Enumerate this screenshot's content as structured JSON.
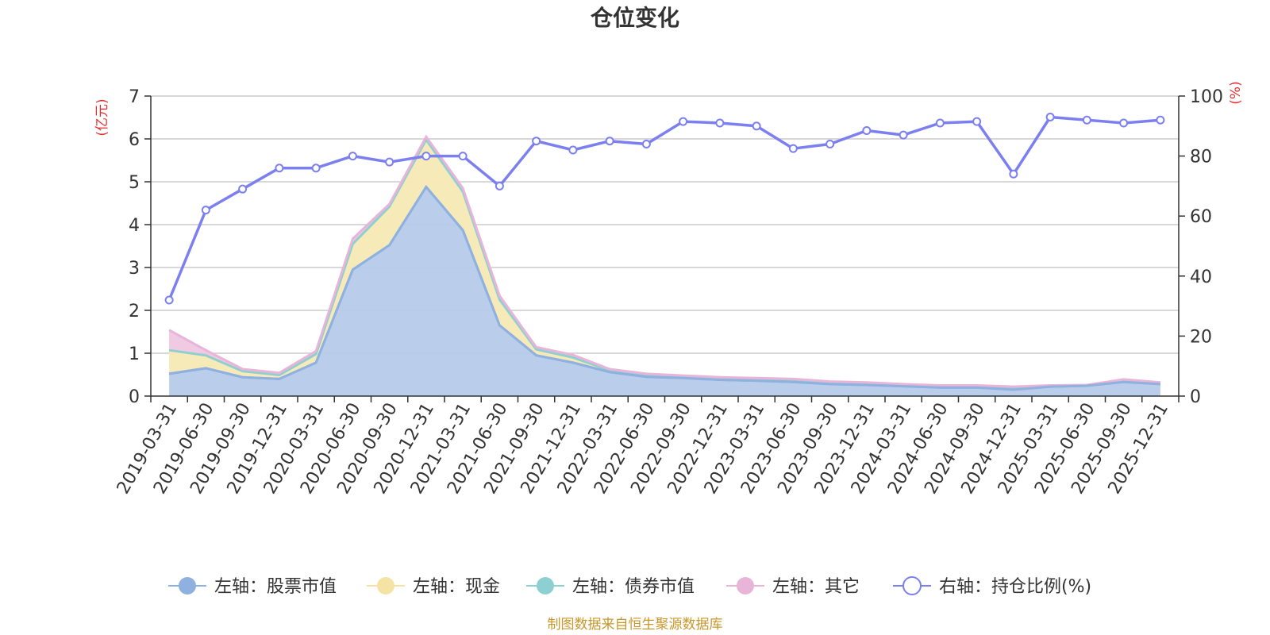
{
  "chart_data": {
    "type": "area",
    "title": "仓位变化",
    "source_note": "制图数据来自恒生聚源数据库",
    "left_axis": {
      "unit": "(亿元)",
      "ticks": [
        "0",
        "1",
        "2",
        "3",
        "4",
        "5",
        "6",
        "7"
      ],
      "ylim": [
        0,
        7
      ]
    },
    "right_axis": {
      "unit": "(%)",
      "ticks": [
        "0",
        "20",
        "40",
        "60",
        "80",
        "100"
      ],
      "ylim": [
        0,
        100
      ]
    },
    "categories": [
      "2019-03-31",
      "2019-06-30",
      "2019-09-30",
      "2019-12-31",
      "2020-03-31",
      "2020-06-30",
      "2020-09-30",
      "2020-12-31",
      "2021-03-31",
      "2021-06-30",
      "2021-09-30",
      "2021-12-31",
      "2022-03-31",
      "2022-06-30",
      "2022-09-30",
      "2022-12-31",
      "2023-03-31",
      "2023-06-30",
      "2023-09-30",
      "2023-12-31",
      "2024-03-31",
      "2024-06-30",
      "2024-09-30",
      "2024-12-31",
      "2025-03-31",
      "2025-06-30",
      "2025-09-30",
      "2025-12-31"
    ],
    "series": [
      {
        "name": "左轴：股票市值",
        "axis": "left",
        "color": "#8fb1e0",
        "fill": "#b6cbea",
        "values": [
          0.52,
          0.65,
          0.44,
          0.4,
          0.78,
          2.95,
          3.52,
          4.88,
          3.87,
          1.65,
          0.95,
          0.78,
          0.56,
          0.45,
          0.42,
          0.38,
          0.36,
          0.33,
          0.28,
          0.26,
          0.23,
          0.2,
          0.2,
          0.15,
          0.22,
          0.24,
          0.33,
          0.28
        ]
      },
      {
        "name": "左轴：现金",
        "axis": "left",
        "color": "#f5e3a3",
        "fill": "#f7e9b5",
        "values": [
          0.55,
          0.3,
          0.14,
          0.09,
          0.2,
          0.6,
          0.9,
          1.1,
          0.9,
          0.6,
          0.14,
          0.12,
          0.04,
          0.03,
          0.02,
          0.02,
          0.02,
          0.02,
          0.02,
          0.02,
          0.02,
          0.02,
          0.02,
          0.02,
          0.01,
          0.0,
          0.02,
          0.01
        ]
      },
      {
        "name": "左轴：债券市值",
        "axis": "left",
        "color": "#8ed0d2",
        "fill": "#a8dcde",
        "values": [
          0,
          0,
          0,
          0,
          0,
          0,
          0,
          0,
          0,
          0,
          0,
          0,
          0,
          0,
          0,
          0,
          0,
          0,
          0,
          0,
          0,
          0,
          0,
          0,
          0,
          0,
          0,
          0
        ]
      },
      {
        "name": "左轴：其它",
        "axis": "left",
        "color": "#e8b4d8",
        "fill": "#efc6e0",
        "values": [
          0.47,
          0.12,
          0.05,
          0.05,
          0.07,
          0.12,
          0.06,
          0.07,
          0.08,
          0.09,
          0.05,
          0.06,
          0.03,
          0.04,
          0.04,
          0.04,
          0.04,
          0.05,
          0.04,
          0.04,
          0.03,
          0.03,
          0.03,
          0.05,
          0.02,
          0.02,
          0.04,
          0.03
        ]
      },
      {
        "name": "右轴：持仓比例(%)",
        "axis": "right",
        "color": "#7b7ff0",
        "values": [
          32,
          62,
          69,
          76,
          76,
          80,
          78,
          80,
          80,
          70,
          85,
          82,
          85,
          84,
          91.5,
          91,
          90,
          82.5,
          84,
          88.5,
          87,
          91,
          91.5,
          74,
          93,
          92,
          91,
          92
        ]
      }
    ]
  }
}
